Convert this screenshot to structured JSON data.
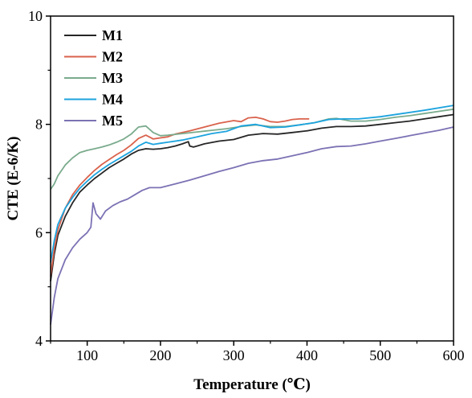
{
  "chart_data": {
    "type": "line",
    "title": "",
    "xlabel": "Temperature (℃)",
    "ylabel": "CTE (E-6/K)",
    "xlim": [
      50,
      600
    ],
    "ylim": [
      4,
      10
    ],
    "xticks": [
      100,
      200,
      300,
      400,
      500,
      600
    ],
    "yticks": [
      4,
      6,
      8,
      10
    ],
    "grid": false,
    "legend_position": "top-left",
    "series": [
      {
        "name": "M1",
        "color": "#262626",
        "points": [
          [
            50,
            5.1
          ],
          [
            55,
            5.6
          ],
          [
            60,
            5.95
          ],
          [
            70,
            6.3
          ],
          [
            80,
            6.55
          ],
          [
            90,
            6.75
          ],
          [
            100,
            6.88
          ],
          [
            110,
            7.0
          ],
          [
            120,
            7.1
          ],
          [
            130,
            7.2
          ],
          [
            140,
            7.28
          ],
          [
            150,
            7.36
          ],
          [
            160,
            7.45
          ],
          [
            170,
            7.52
          ],
          [
            180,
            7.55
          ],
          [
            190,
            7.54
          ],
          [
            200,
            7.55
          ],
          [
            210,
            7.57
          ],
          [
            220,
            7.6
          ],
          [
            230,
            7.64
          ],
          [
            238,
            7.68
          ],
          [
            240,
            7.6
          ],
          [
            245,
            7.58
          ],
          [
            250,
            7.6
          ],
          [
            260,
            7.64
          ],
          [
            280,
            7.69
          ],
          [
            300,
            7.72
          ],
          [
            320,
            7.8
          ],
          [
            340,
            7.83
          ],
          [
            360,
            7.82
          ],
          [
            380,
            7.85
          ],
          [
            400,
            7.88
          ],
          [
            420,
            7.93
          ],
          [
            440,
            7.96
          ],
          [
            460,
            7.96
          ],
          [
            480,
            7.97
          ],
          [
            500,
            8.0
          ],
          [
            520,
            8.03
          ],
          [
            540,
            8.06
          ],
          [
            560,
            8.1
          ],
          [
            580,
            8.14
          ],
          [
            600,
            8.18
          ]
        ]
      },
      {
        "name": "M2",
        "color": "#d9624c",
        "points": [
          [
            50,
            5.2
          ],
          [
            55,
            5.7
          ],
          [
            60,
            6.05
          ],
          [
            70,
            6.45
          ],
          [
            80,
            6.7
          ],
          [
            90,
            6.88
          ],
          [
            100,
            7.02
          ],
          [
            110,
            7.15
          ],
          [
            120,
            7.26
          ],
          [
            130,
            7.35
          ],
          [
            140,
            7.44
          ],
          [
            150,
            7.52
          ],
          [
            160,
            7.62
          ],
          [
            170,
            7.74
          ],
          [
            180,
            7.8
          ],
          [
            190,
            7.73
          ],
          [
            200,
            7.75
          ],
          [
            210,
            7.77
          ],
          [
            220,
            7.82
          ],
          [
            240,
            7.88
          ],
          [
            260,
            7.95
          ],
          [
            280,
            8.02
          ],
          [
            300,
            8.07
          ],
          [
            310,
            8.05
          ],
          [
            320,
            8.12
          ],
          [
            330,
            8.13
          ],
          [
            340,
            8.1
          ],
          [
            350,
            8.05
          ],
          [
            360,
            8.04
          ],
          [
            370,
            8.06
          ],
          [
            380,
            8.09
          ],
          [
            390,
            8.1
          ],
          [
            403,
            8.1
          ]
        ]
      },
      {
        "name": "M3",
        "color": "#7aab8d",
        "points": [
          [
            50,
            6.8
          ],
          [
            55,
            6.9
          ],
          [
            60,
            7.05
          ],
          [
            70,
            7.25
          ],
          [
            80,
            7.38
          ],
          [
            90,
            7.48
          ],
          [
            100,
            7.52
          ],
          [
            110,
            7.55
          ],
          [
            120,
            7.58
          ],
          [
            130,
            7.62
          ],
          [
            140,
            7.67
          ],
          [
            150,
            7.73
          ],
          [
            160,
            7.82
          ],
          [
            170,
            7.95
          ],
          [
            180,
            7.97
          ],
          [
            190,
            7.85
          ],
          [
            200,
            7.79
          ],
          [
            210,
            7.8
          ],
          [
            230,
            7.83
          ],
          [
            250,
            7.86
          ],
          [
            270,
            7.89
          ],
          [
            290,
            7.92
          ],
          [
            310,
            7.96
          ],
          [
            330,
            7.99
          ],
          [
            350,
            7.96
          ],
          [
            370,
            7.96
          ],
          [
            390,
            7.99
          ],
          [
            410,
            8.03
          ],
          [
            430,
            8.1
          ],
          [
            440,
            8.11
          ],
          [
            460,
            8.06
          ],
          [
            480,
            8.06
          ],
          [
            500,
            8.09
          ],
          [
            520,
            8.13
          ],
          [
            540,
            8.16
          ],
          [
            560,
            8.2
          ],
          [
            580,
            8.24
          ],
          [
            600,
            8.28
          ]
        ]
      },
      {
        "name": "M4",
        "color": "#1ca3de",
        "points": [
          [
            50,
            5.45
          ],
          [
            55,
            5.85
          ],
          [
            60,
            6.15
          ],
          [
            70,
            6.45
          ],
          [
            80,
            6.65
          ],
          [
            90,
            6.82
          ],
          [
            100,
            6.95
          ],
          [
            110,
            7.07
          ],
          [
            120,
            7.17
          ],
          [
            130,
            7.26
          ],
          [
            140,
            7.34
          ],
          [
            150,
            7.42
          ],
          [
            160,
            7.5
          ],
          [
            170,
            7.6
          ],
          [
            180,
            7.67
          ],
          [
            190,
            7.63
          ],
          [
            200,
            7.65
          ],
          [
            210,
            7.67
          ],
          [
            230,
            7.71
          ],
          [
            250,
            7.77
          ],
          [
            270,
            7.83
          ],
          [
            290,
            7.87
          ],
          [
            310,
            7.97
          ],
          [
            330,
            8.0
          ],
          [
            350,
            7.94
          ],
          [
            370,
            7.95
          ],
          [
            390,
            7.99
          ],
          [
            410,
            8.03
          ],
          [
            430,
            8.09
          ],
          [
            450,
            8.1
          ],
          [
            470,
            8.1
          ],
          [
            500,
            8.14
          ],
          [
            530,
            8.2
          ],
          [
            560,
            8.26
          ],
          [
            600,
            8.35
          ]
        ]
      },
      {
        "name": "M5",
        "color": "#7b72b4",
        "points": [
          [
            50,
            4.3
          ],
          [
            55,
            4.8
          ],
          [
            60,
            5.15
          ],
          [
            70,
            5.5
          ],
          [
            80,
            5.72
          ],
          [
            90,
            5.88
          ],
          [
            100,
            6.0
          ],
          [
            105,
            6.1
          ],
          [
            108,
            6.55
          ],
          [
            112,
            6.35
          ],
          [
            118,
            6.25
          ],
          [
            125,
            6.4
          ],
          [
            135,
            6.5
          ],
          [
            145,
            6.57
          ],
          [
            155,
            6.62
          ],
          [
            165,
            6.7
          ],
          [
            175,
            6.78
          ],
          [
            185,
            6.83
          ],
          [
            200,
            6.83
          ],
          [
            220,
            6.9
          ],
          [
            240,
            6.97
          ],
          [
            260,
            7.05
          ],
          [
            280,
            7.13
          ],
          [
            300,
            7.2
          ],
          [
            320,
            7.28
          ],
          [
            340,
            7.33
          ],
          [
            360,
            7.36
          ],
          [
            380,
            7.42
          ],
          [
            400,
            7.48
          ],
          [
            420,
            7.55
          ],
          [
            440,
            7.59
          ],
          [
            460,
            7.6
          ],
          [
            480,
            7.64
          ],
          [
            500,
            7.69
          ],
          [
            520,
            7.74
          ],
          [
            540,
            7.79
          ],
          [
            560,
            7.84
          ],
          [
            580,
            7.89
          ],
          [
            600,
            7.95
          ]
        ]
      }
    ]
  }
}
